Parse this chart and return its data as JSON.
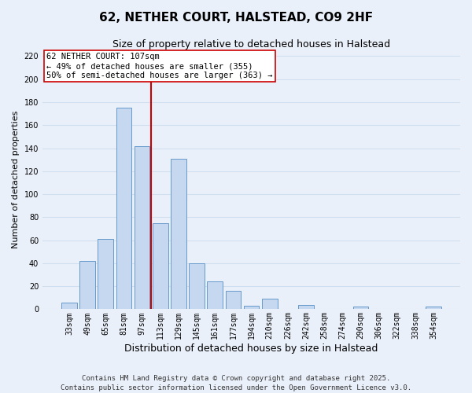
{
  "title": "62, NETHER COURT, HALSTEAD, CO9 2HF",
  "subtitle": "Size of property relative to detached houses in Halstead",
  "xlabel": "Distribution of detached houses by size in Halstead",
  "ylabel": "Number of detached properties",
  "bar_labels": [
    "33sqm",
    "49sqm",
    "65sqm",
    "81sqm",
    "97sqm",
    "113sqm",
    "129sqm",
    "145sqm",
    "161sqm",
    "177sqm",
    "194sqm",
    "210sqm",
    "226sqm",
    "242sqm",
    "258sqm",
    "274sqm",
    "290sqm",
    "306sqm",
    "322sqm",
    "338sqm",
    "354sqm"
  ],
  "bar_values": [
    6,
    42,
    61,
    175,
    142,
    75,
    131,
    40,
    24,
    16,
    3,
    9,
    0,
    4,
    0,
    0,
    2,
    0,
    0,
    0,
    2
  ],
  "bar_color": "#c5d8f0",
  "bar_edge_color": "#6699cc",
  "grid_color": "#d0dff0",
  "background_color": "#eaf0fa",
  "vline_x_idx": 4.5,
  "vline_color": "#cc0000",
  "annotation_line1": "62 NETHER COURT: 107sqm",
  "annotation_line2": "← 49% of detached houses are smaller (355)",
  "annotation_line3": "50% of semi-detached houses are larger (363) →",
  "annotation_box_color": "#ffffff",
  "annotation_box_edge": "#cc0000",
  "ylim": [
    0,
    225
  ],
  "yticks": [
    0,
    20,
    40,
    60,
    80,
    100,
    120,
    140,
    160,
    180,
    200,
    220
  ],
  "footnote": "Contains HM Land Registry data © Crown copyright and database right 2025.\nContains public sector information licensed under the Open Government Licence v3.0.",
  "title_fontsize": 11,
  "subtitle_fontsize": 9,
  "xlabel_fontsize": 9,
  "ylabel_fontsize": 8,
  "tick_fontsize": 7,
  "annotation_fontsize": 7.5,
  "footnote_fontsize": 6.5
}
